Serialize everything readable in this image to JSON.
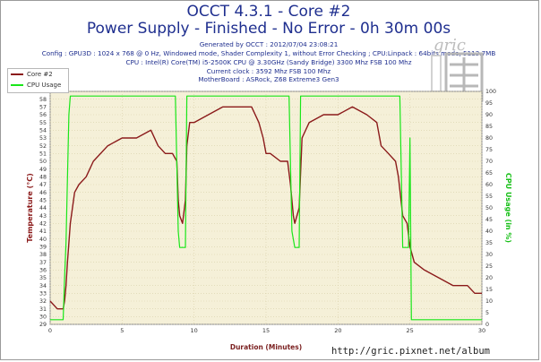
{
  "header": {
    "title_line1": "OCCT 4.3.1 - Core #2",
    "title_line2": "Power Supply - Finished - No Error - 0h 30m 00s",
    "info": [
      "Generated by OCCT : 2012/07/04 23:08:21",
      "Config : GPU3D : 1024 x 768 @ 0 Hz, Windowed mode, Shader Complexity 1, without Error Checking ; CPU:Linpack : 64bits mode, 5113.7MB",
      "CPU : Intel(R) Core(TM) i5-2500K CPU @ 3.30GHz (Sandy Bridge) 3300 Mhz FSB 100 Mhz",
      "Current clock : 3592 Mhz FSB 100 Mhz",
      "MotherBoard : ASRock, Z68 Extreme3 Gen3"
    ]
  },
  "watermark": {
    "brand": "gric",
    "url": "http://gric.pixnet.net/album"
  },
  "colors": {
    "background": "#f5f0d8",
    "temperature": "#8b1a1a",
    "cpu_usage": "#19e619",
    "title": "#1f2f8f"
  },
  "chart_data": {
    "type": "line",
    "title": "OCCT 4.3.1 - Core #2",
    "subtitle": "Power Supply - Finished - No Error - 0h 30m 00s",
    "xlabel": "Duration (Minutes)",
    "ylabel": "Temperature (°C)",
    "y2label": "CPU Usage (in %)",
    "xlim": [
      0,
      30
    ],
    "ylim": [
      29,
      59
    ],
    "y2lim": [
      0,
      100
    ],
    "xticks": [
      "0",
      "5",
      "10",
      "15",
      "20",
      "25",
      "30"
    ],
    "yticks": [
      "29",
      "30",
      "31",
      "32",
      "33",
      "34",
      "35",
      "36",
      "37",
      "38",
      "39",
      "40",
      "41",
      "42",
      "43",
      "44",
      "45",
      "46",
      "47",
      "48",
      "49",
      "50",
      "51",
      "52",
      "53",
      "54",
      "55",
      "56",
      "57",
      "58",
      "59"
    ],
    "y2ticks": [
      "0",
      "5",
      "10",
      "15",
      "20",
      "25",
      "30",
      "35",
      "40",
      "45",
      "50",
      "55",
      "60",
      "65",
      "70",
      "75",
      "80",
      "85",
      "90",
      "95",
      "100"
    ],
    "grid": true,
    "legend": "top-left",
    "series": [
      {
        "name": "Core #2",
        "axis": "left",
        "x": [
          0,
          0.5,
          0.9,
          1.0,
          1.1,
          1.2,
          1.4,
          1.7,
          2.0,
          2.5,
          3.0,
          4.0,
          5.0,
          6.0,
          7.0,
          7.5,
          8.0,
          8.5,
          8.8,
          8.9,
          9.0,
          9.2,
          9.4,
          9.5,
          9.7,
          10.0,
          11.0,
          12.0,
          13.0,
          14.0,
          14.5,
          14.8,
          15.0,
          15.3,
          16.0,
          16.5,
          16.7,
          16.9,
          17.0,
          17.3,
          17.5,
          18.0,
          19.0,
          20.0,
          21.0,
          22.0,
          22.7,
          23.0,
          23.5,
          24.0,
          24.2,
          24.5,
          24.8,
          25.0,
          25.3,
          26.0,
          27.0,
          28.0,
          29.0,
          29.5,
          30.0
        ],
        "values": [
          32,
          31,
          31,
          32,
          34,
          37,
          42,
          46,
          47,
          48,
          50,
          52,
          53,
          53,
          54,
          52,
          51,
          51,
          50,
          45,
          43,
          42,
          45,
          52,
          55,
          55,
          56,
          57,
          57,
          57,
          55,
          53,
          51,
          51,
          50,
          50,
          47,
          43,
          42,
          44,
          53,
          55,
          56,
          56,
          57,
          56,
          55,
          52,
          51,
          50,
          48,
          43,
          42,
          39,
          37,
          36,
          35,
          34,
          34,
          33,
          33
        ]
      },
      {
        "name": "CPU Usage",
        "axis": "right",
        "x": [
          0,
          0.9,
          1.0,
          1.1,
          1.3,
          1.4,
          2.0,
          8.7,
          8.9,
          9.0,
          9.4,
          9.5,
          16.6,
          16.8,
          17.0,
          17.3,
          17.4,
          24.3,
          24.5,
          24.9,
          25.0,
          25.1,
          30.0
        ],
        "values": [
          2,
          2,
          20,
          35,
          90,
          98,
          98,
          98,
          40,
          33,
          33,
          98,
          98,
          40,
          33,
          33,
          98,
          98,
          33,
          33,
          80,
          2,
          2
        ]
      }
    ]
  }
}
